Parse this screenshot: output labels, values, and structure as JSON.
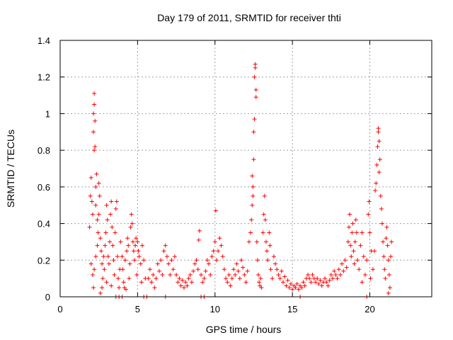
{
  "chart_data": {
    "type": "scatter",
    "title": "Day 179 of 2011, SRMTID for receiver thti",
    "xlabel": "GPS time / hours",
    "ylabel": "SRMTID / TECUs",
    "xlim": [
      0,
      24
    ],
    "ylim": [
      0,
      1.4
    ],
    "xticks": [
      0,
      5,
      10,
      15,
      20
    ],
    "xtick_labels": [
      "0",
      "5",
      "10",
      "15",
      "20"
    ],
    "yticks": [
      0,
      0.2,
      0.4,
      0.6,
      0.8,
      1,
      1.2,
      1.4
    ],
    "ytick_labels": [
      "0",
      "0.2",
      "0.4",
      "0.6",
      "0.8",
      "1",
      "1.2",
      "1.4"
    ],
    "grid": true,
    "marker": "+",
    "series": [
      {
        "name": "SRMTID",
        "color": "#ff0000",
        "points": [
          [
            1.9,
            0.38
          ],
          [
            1.95,
            0.55
          ],
          [
            2.0,
            0.65
          ],
          [
            2.05,
            0.52
          ],
          [
            2.1,
            0.45
          ],
          [
            2.15,
            0.9
          ],
          [
            2.15,
            1.0
          ],
          [
            2.2,
            1.11
          ],
          [
            2.2,
            1.05
          ],
          [
            2.25,
            0.96
          ],
          [
            2.25,
            0.82
          ],
          [
            2.2,
            0.8
          ],
          [
            2.3,
            0.6
          ],
          [
            2.35,
            0.67
          ],
          [
            2.3,
            0.5
          ],
          [
            2.4,
            0.42
          ],
          [
            2.45,
            0.35
          ],
          [
            2.4,
            0.28
          ],
          [
            2.2,
            0.15
          ],
          [
            2.1,
            0.12
          ],
          [
            2.15,
            0.05
          ],
          [
            2.0,
            0.18
          ],
          [
            2.3,
            0.22
          ],
          [
            2.5,
            0.62
          ],
          [
            2.55,
            0.55
          ],
          [
            2.5,
            0.45
          ],
          [
            2.6,
            0.32
          ],
          [
            2.65,
            0.25
          ],
          [
            2.7,
            0.18
          ],
          [
            2.75,
            0.1
          ],
          [
            2.8,
            0.22
          ],
          [
            2.85,
            0.15
          ],
          [
            2.9,
            0.28
          ],
          [
            2.95,
            0.35
          ],
          [
            3.0,
            0.5
          ],
          [
            3.05,
            0.42
          ],
          [
            3.1,
            0.22
          ],
          [
            3.15,
            0.18
          ],
          [
            3.2,
            0.3
          ],
          [
            3.25,
            0.45
          ],
          [
            3.3,
            0.52
          ],
          [
            3.35,
            0.38
          ],
          [
            3.4,
            0.28
          ],
          [
            3.45,
            0.2
          ],
          [
            3.5,
            0.12
          ],
          [
            3.55,
            0.35
          ],
          [
            3.6,
            0.48
          ],
          [
            3.65,
            0.52
          ],
          [
            3.7,
            0.22
          ],
          [
            3.75,
            0.1
          ],
          [
            3.8,
            0.05
          ],
          [
            3.85,
            0.15
          ],
          [
            2.6,
            0.02
          ],
          [
            2.7,
            0.05
          ],
          [
            3.0,
            0.08
          ],
          [
            3.3,
            0.06
          ],
          [
            3.9,
            0.3
          ],
          [
            4.0,
            0.22
          ],
          [
            4.05,
            0.15
          ],
          [
            4.1,
            0.08
          ],
          [
            4.2,
            0.2
          ],
          [
            4.3,
            0.25
          ],
          [
            4.35,
            0.32
          ],
          [
            4.4,
            0.28
          ],
          [
            4.5,
            0.18
          ],
          [
            4.55,
            0.38
          ],
          [
            4.6,
            0.45
          ],
          [
            4.65,
            0.4
          ],
          [
            4.7,
            0.3
          ],
          [
            4.75,
            0.25
          ],
          [
            4.8,
            0.2
          ],
          [
            4.85,
            0.28
          ],
          [
            4.9,
            0.32
          ],
          [
            5.0,
            0.3
          ],
          [
            5.05,
            0.25
          ],
          [
            5.1,
            0.22
          ],
          [
            5.2,
            0.18
          ],
          [
            5.3,
            0.28
          ],
          [
            5.4,
            0.2
          ],
          [
            5.5,
            0.1
          ],
          [
            4.15,
            0.05
          ],
          [
            4.25,
            0.04
          ],
          [
            4.45,
            0.1
          ],
          [
            4.95,
            0.12
          ],
          [
            5.25,
            0.08
          ],
          [
            5.7,
            0.1
          ],
          [
            5.8,
            0.15
          ],
          [
            5.9,
            0.08
          ],
          [
            6.0,
            0.12
          ],
          [
            6.1,
            0.05
          ],
          [
            6.2,
            0.1
          ],
          [
            6.3,
            0.18
          ],
          [
            6.4,
            0.14
          ],
          [
            6.5,
            0.2
          ],
          [
            6.6,
            0.12
          ],
          [
            6.7,
            0.25
          ],
          [
            6.8,
            0.28
          ],
          [
            6.9,
            0.22
          ],
          [
            7.0,
            0.18
          ],
          [
            7.1,
            0.12
          ],
          [
            7.2,
            0.2
          ],
          [
            7.3,
            0.15
          ],
          [
            7.4,
            0.22
          ],
          [
            7.5,
            0.12
          ],
          [
            7.6,
            0.08
          ],
          [
            7.7,
            0.1
          ],
          [
            7.8,
            0.06
          ],
          [
            7.9,
            0.09
          ],
          [
            8.0,
            0.05
          ],
          [
            8.1,
            0.08
          ],
          [
            8.2,
            0.06
          ],
          [
            8.3,
            0.1
          ],
          [
            8.4,
            0.12
          ],
          [
            8.5,
            0.08
          ],
          [
            8.6,
            0.14
          ],
          [
            8.7,
            0.18
          ],
          [
            8.8,
            0.2
          ],
          [
            8.9,
            0.15
          ],
          [
            8.95,
            0.31
          ],
          [
            9.0,
            0.36
          ],
          [
            9.1,
            0.12
          ],
          [
            9.2,
            0.08
          ],
          [
            9.3,
            0.1
          ],
          [
            9.4,
            0.14
          ],
          [
            9.5,
            0.2
          ],
          [
            9.6,
            0.18
          ],
          [
            9.7,
            0.12
          ],
          [
            9.8,
            0.22
          ],
          [
            9.9,
            0.25
          ],
          [
            10.0,
            0.3
          ],
          [
            10.05,
            0.47
          ],
          [
            10.1,
            0.2
          ],
          [
            10.2,
            0.25
          ],
          [
            10.3,
            0.32
          ],
          [
            10.4,
            0.28
          ],
          [
            10.5,
            0.22
          ],
          [
            10.6,
            0.15
          ],
          [
            10.7,
            0.1
          ],
          [
            10.8,
            0.08
          ],
          [
            10.9,
            0.12
          ],
          [
            11.0,
            0.06
          ],
          [
            11.1,
            0.1
          ],
          [
            11.2,
            0.15
          ],
          [
            11.3,
            0.12
          ],
          [
            11.4,
            0.18
          ],
          [
            11.5,
            0.14
          ],
          [
            11.6,
            0.1
          ],
          [
            11.7,
            0.2
          ],
          [
            11.8,
            0.16
          ],
          [
            11.9,
            0.12
          ],
          [
            12.0,
            0.08
          ],
          [
            12.1,
            0.14
          ],
          [
            12.2,
            0.3
          ],
          [
            12.4,
            0.5
          ],
          [
            12.45,
            0.6
          ],
          [
            12.5,
            0.9
          ],
          [
            12.55,
            1.2
          ],
          [
            12.6,
            1.27
          ],
          [
            12.6,
            1.25
          ],
          [
            12.55,
            0.97
          ],
          [
            12.5,
            0.75
          ],
          [
            12.45,
            0.55
          ],
          [
            12.4,
            0.66
          ],
          [
            12.35,
            0.42
          ],
          [
            12.3,
            0.35
          ],
          [
            12.65,
            1.13
          ],
          [
            12.65,
            1.09
          ],
          [
            12.7,
            0.3
          ],
          [
            12.75,
            0.2
          ],
          [
            12.8,
            0.12
          ],
          [
            12.85,
            0.08
          ],
          [
            12.9,
            0.06
          ],
          [
            12.95,
            0.1
          ],
          [
            13.0,
            0.05
          ],
          [
            13.1,
            0.35
          ],
          [
            13.15,
            0.45
          ],
          [
            13.2,
            0.55
          ],
          [
            13.25,
            0.42
          ],
          [
            13.3,
            0.3
          ],
          [
            13.35,
            0.25
          ],
          [
            13.4,
            0.2
          ],
          [
            13.5,
            0.35
          ],
          [
            13.55,
            0.28
          ],
          [
            13.6,
            0.15
          ],
          [
            13.7,
            0.1
          ],
          [
            13.8,
            0.22
          ],
          [
            13.9,
            0.18
          ],
          [
            14.0,
            0.15
          ],
          [
            14.1,
            0.12
          ],
          [
            14.2,
            0.1
          ],
          [
            14.3,
            0.14
          ],
          [
            14.4,
            0.08
          ],
          [
            14.5,
            0.11
          ],
          [
            14.6,
            0.06
          ],
          [
            14.7,
            0.09
          ],
          [
            14.8,
            0.05
          ],
          [
            14.9,
            0.07
          ],
          [
            15.0,
            0.04
          ],
          [
            15.1,
            0.06
          ],
          [
            15.2,
            0.05
          ],
          [
            15.3,
            0.07
          ],
          [
            15.4,
            0.04
          ],
          [
            15.5,
            0.06
          ],
          [
            15.6,
            0.05
          ],
          [
            15.7,
            0.08
          ],
          [
            15.8,
            0.06
          ],
          [
            15.9,
            0.1
          ],
          [
            16.0,
            0.12
          ],
          [
            16.1,
            0.1
          ],
          [
            16.2,
            0.08
          ],
          [
            16.3,
            0.12
          ],
          [
            16.4,
            0.1
          ],
          [
            16.5,
            0.08
          ],
          [
            16.6,
            0.1
          ],
          [
            16.7,
            0.07
          ],
          [
            16.8,
            0.09
          ],
          [
            16.9,
            0.06
          ],
          [
            17.0,
            0.08
          ],
          [
            17.1,
            0.1
          ],
          [
            17.2,
            0.08
          ],
          [
            17.3,
            0.06
          ],
          [
            17.4,
            0.09
          ],
          [
            17.5,
            0.12
          ],
          [
            17.6,
            0.1
          ],
          [
            17.7,
            0.14
          ],
          [
            17.8,
            0.12
          ],
          [
            17.9,
            0.1
          ],
          [
            18.0,
            0.15
          ],
          [
            18.1,
            0.12
          ],
          [
            18.2,
            0.18
          ],
          [
            18.3,
            0.14
          ],
          [
            18.4,
            0.2
          ],
          [
            18.5,
            0.16
          ],
          [
            18.6,
            0.3
          ],
          [
            18.65,
            0.38
          ],
          [
            18.7,
            0.45
          ],
          [
            18.75,
            0.28
          ],
          [
            18.8,
            0.22
          ],
          [
            18.85,
            0.35
          ],
          [
            18.9,
            0.4
          ],
          [
            18.95,
            0.25
          ],
          [
            19.0,
            0.18
          ],
          [
            19.05,
            0.3
          ],
          [
            19.1,
            0.42
          ],
          [
            19.15,
            0.35
          ],
          [
            19.2,
            0.2
          ],
          [
            19.3,
            0.15
          ],
          [
            19.4,
            0.28
          ],
          [
            19.5,
            0.35
          ],
          [
            19.6,
            0.22
          ],
          [
            19.7,
            0.12
          ],
          [
            19.8,
            0.2
          ],
          [
            19.9,
            0.45
          ],
          [
            19.95,
            0.52
          ],
          [
            20.0,
            0.35
          ],
          [
            20.1,
            0.25
          ],
          [
            20.2,
            0.15
          ],
          [
            20.3,
            0.25
          ],
          [
            20.35,
            0.58
          ],
          [
            20.4,
            0.62
          ],
          [
            20.45,
            0.72
          ],
          [
            20.5,
            0.82
          ],
          [
            20.55,
            0.92
          ],
          [
            20.55,
            0.9
          ],
          [
            20.6,
            0.85
          ],
          [
            20.65,
            0.75
          ],
          [
            20.6,
            0.68
          ],
          [
            20.7,
            0.55
          ],
          [
            20.75,
            0.48
          ],
          [
            20.8,
            0.4
          ],
          [
            20.85,
            0.3
          ],
          [
            20.9,
            0.22
          ],
          [
            20.95,
            0.15
          ],
          [
            21.0,
            0.1
          ],
          [
            21.05,
            0.32
          ],
          [
            21.1,
            0.38
          ],
          [
            21.15,
            0.28
          ],
          [
            21.2,
            0.2
          ],
          [
            21.25,
            0.12
          ],
          [
            21.3,
            0.05
          ],
          [
            21.35,
            0.22
          ],
          [
            21.4,
            0.3
          ],
          [
            19.5,
            0.08
          ],
          [
            20.05,
            0.1
          ],
          [
            21.2,
            0.02
          ],
          [
            3.6,
            0.0
          ],
          [
            3.8,
            0.0
          ],
          [
            4.0,
            0.0
          ],
          [
            5.4,
            0.0
          ],
          [
            5.6,
            0.0
          ],
          [
            6.8,
            0.0
          ],
          [
            9.1,
            0.0
          ],
          [
            9.3,
            0.0
          ],
          [
            15.5,
            0.0
          ],
          [
            19.8,
            0.0
          ]
        ]
      }
    ]
  }
}
